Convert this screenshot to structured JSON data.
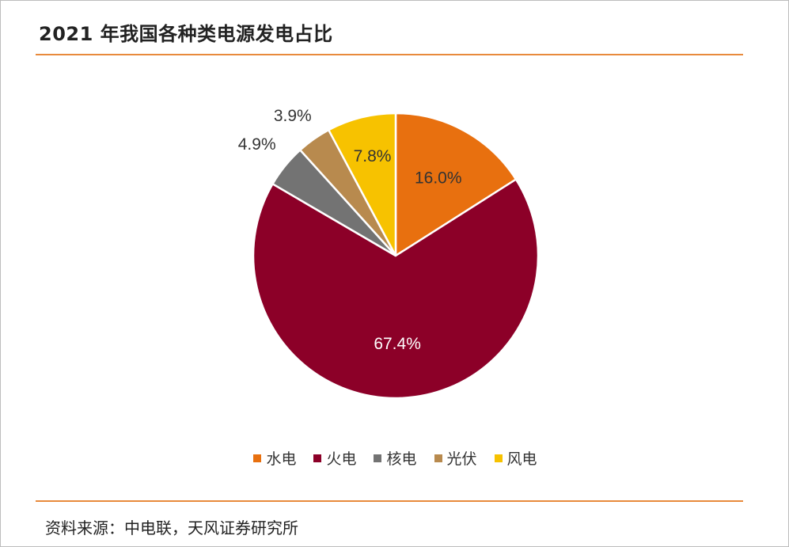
{
  "title": "2021 年我国各种类电源发电占比",
  "source": "资料来源：中电联，天风证券研究所",
  "chart_data": {
    "type": "pie",
    "categories": [
      "水电",
      "火电",
      "核电",
      "光伏",
      "风电"
    ],
    "values": [
      16.0,
      67.4,
      4.9,
      3.9,
      7.8
    ],
    "labels": [
      "16.0%",
      "67.4%",
      "4.9%",
      "3.9%",
      "7.8%"
    ],
    "colors": [
      "#e8700f",
      "#8c0028",
      "#737373",
      "#b88a4e",
      "#f7c200"
    ],
    "label_colors": [
      "#333333",
      "#ffffff",
      "#333333",
      "#333333",
      "#333333"
    ],
    "legend_position": "bottom"
  }
}
